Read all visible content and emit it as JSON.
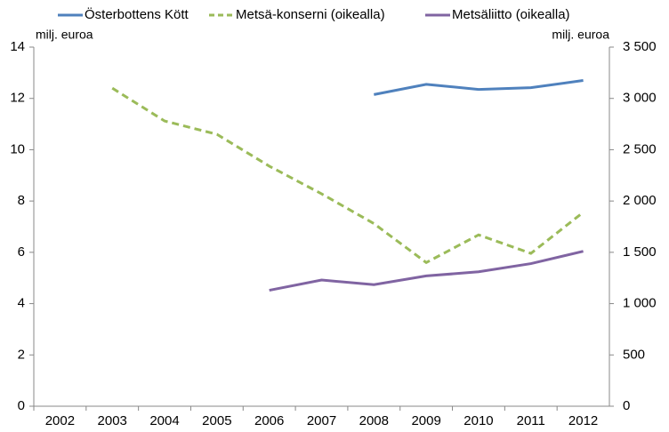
{
  "chart_data": {
    "type": "line",
    "y_label": "milj. euroa",
    "y2_label": "milj. euroa",
    "categories": [
      "2002",
      "2003",
      "2004",
      "2005",
      "2006",
      "2007",
      "2008",
      "2009",
      "2010",
      "2011",
      "2012"
    ],
    "series": [
      {
        "name": "Österbottens Kött",
        "color": "#4f81bd",
        "dashed": false,
        "values": [
          null,
          null,
          null,
          null,
          null,
          null,
          12.15,
          12.55,
          12.35,
          12.42,
          12.7
        ]
      },
      {
        "name": "Metsä-konserni (oikealla)",
        "color": "#9bbb59",
        "dashed": true,
        "axis": "y2",
        "values": [
          null,
          3100,
          2780,
          2650,
          2340,
          2070,
          1780,
          1400,
          1670,
          1490,
          1890
        ]
      },
      {
        "name": "Metsäliitto (oikealla)",
        "color": "#8064a2",
        "dashed": false,
        "axis": "y2",
        "values": [
          null,
          null,
          null,
          null,
          1130,
          1230,
          1185,
          1270,
          1310,
          1390,
          1510
        ]
      }
    ],
    "ylim": [
      0,
      14
    ],
    "yticks": [
      0,
      2,
      4,
      6,
      8,
      10,
      12,
      14
    ],
    "y2lim": [
      0,
      3500
    ],
    "y2ticks": [
      0,
      500,
      {
        "value": 1000,
        "label": "1 000"
      },
      {
        "value": 1500,
        "label": "1 500"
      },
      {
        "value": 2000,
        "label": "2 000"
      },
      {
        "value": 2500,
        "label": "2 500"
      },
      {
        "value": 3000,
        "label": "3 000"
      },
      {
        "value": 3500,
        "label": "3 500"
      }
    ],
    "legend": "top"
  }
}
